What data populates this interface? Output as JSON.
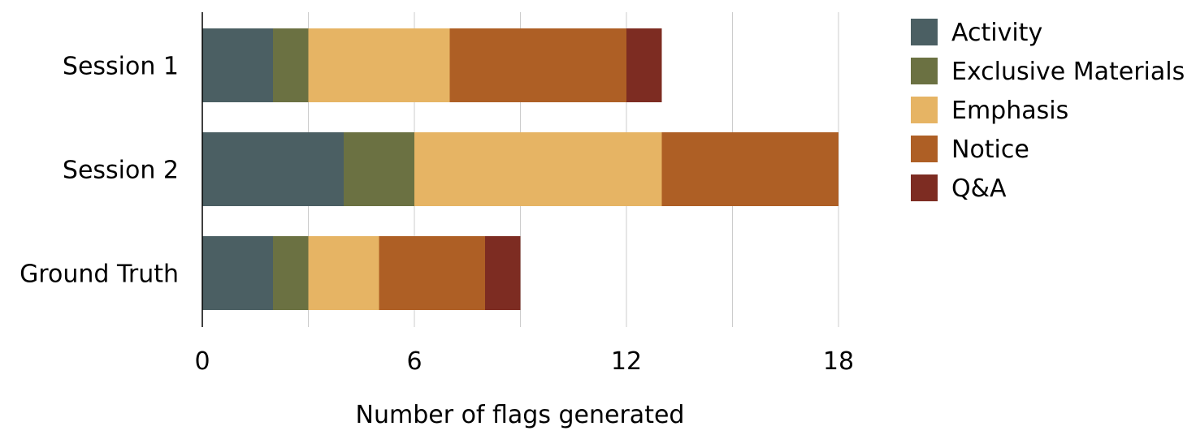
{
  "chart_data": {
    "type": "bar",
    "orientation": "horizontal",
    "stacked": true,
    "categories": [
      "Session 1",
      "Session 2",
      "Ground Truth"
    ],
    "series": [
      {
        "name": "Activity",
        "values": [
          2,
          4,
          2
        ],
        "color": "#4B5F63"
      },
      {
        "name": "Exclusive Materials",
        "values": [
          1,
          2,
          1
        ],
        "color": "#6B7142"
      },
      {
        "name": "Emphasis",
        "values": [
          4,
          7,
          2
        ],
        "color": "#E6B464"
      },
      {
        "name": "Notice",
        "values": [
          5,
          5,
          3
        ],
        "color": "#AE5F25"
      },
      {
        "name": "Q&A",
        "values": [
          1,
          0,
          1
        ],
        "color": "#7D2C22"
      }
    ],
    "xlabel": "Number of flags generated",
    "ylabel": "",
    "xlim": [
      0,
      18
    ],
    "xticks": [
      "0",
      "6",
      "12",
      "18"
    ],
    "grid": true,
    "legend": "top-right"
  }
}
